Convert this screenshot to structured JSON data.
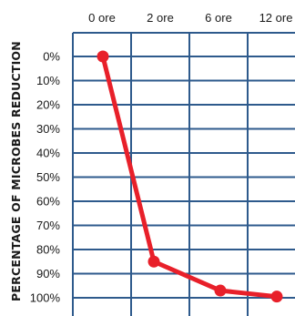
{
  "chart_data": {
    "type": "line",
    "ylabel": "PERCENTAGE OF MICROBES REDUCTION",
    "categories": [
      "0 ore",
      "2 ore",
      "6 ore",
      "12 ore"
    ],
    "y_ticks": [
      "0%",
      "10%",
      "20%",
      "30%",
      "40%",
      "50%",
      "60%",
      "70%",
      "80%",
      "90%",
      "100%"
    ],
    "ylim": [
      0,
      100
    ],
    "y_inverted": true,
    "grid": true,
    "x_axis_position": "top",
    "series": [
      {
        "x": [
          0,
          2,
          6,
          12
        ],
        "values": [
          0,
          85,
          97,
          99.5
        ]
      }
    ]
  },
  "colors": {
    "grid": "#2e5a8c",
    "series": "#e8202a",
    "marker": "#e8202a",
    "text": "#1a1a1a"
  }
}
